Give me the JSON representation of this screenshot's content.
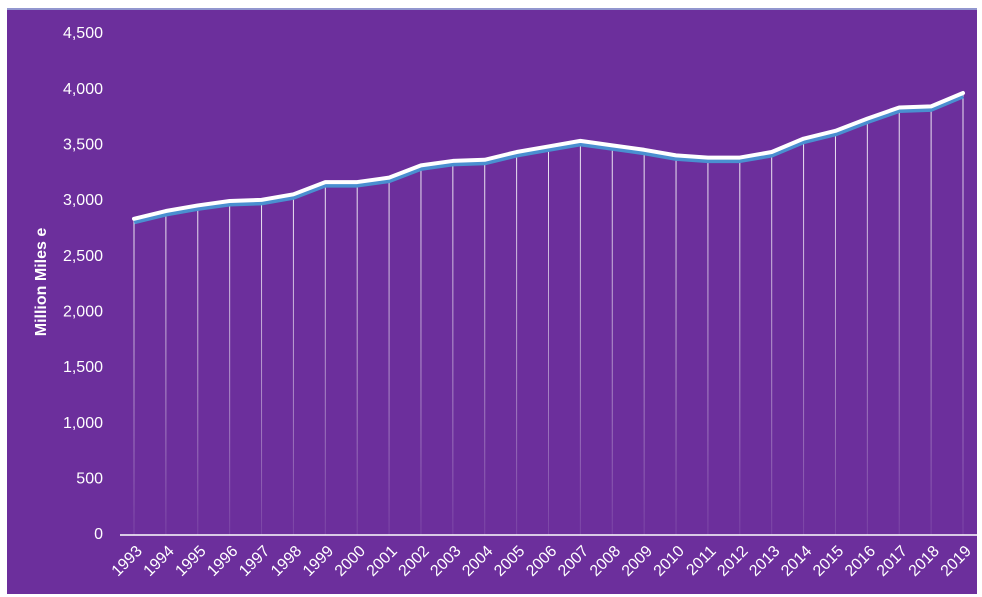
{
  "chart_data": {
    "type": "line",
    "y_label": "Million Miles e",
    "categories": [
      "1993",
      "1994",
      "1995",
      "1996",
      "1997",
      "1998",
      "1999",
      "2000",
      "2001",
      "2002",
      "2003",
      "2004",
      "2005",
      "2006",
      "2007",
      "2008",
      "2009",
      "2010",
      "2011",
      "2012",
      "2013",
      "2014",
      "2015",
      "2016",
      "2017",
      "2018",
      "2019"
    ],
    "values": [
      2840,
      2910,
      2960,
      3000,
      3010,
      3060,
      3170,
      3170,
      3210,
      3320,
      3360,
      3370,
      3440,
      3490,
      3540,
      3500,
      3460,
      3410,
      3390,
      3390,
      3440,
      3560,
      3630,
      3740,
      3840,
      3850,
      3970
    ],
    "color": "#ffffff",
    "ylim": [
      0,
      4500
    ],
    "yticks": [
      0,
      500,
      {
        "value": 1000,
        "label": "1,000"
      },
      {
        "value": 1500,
        "label": "1,500"
      },
      {
        "value": 2000,
        "label": "2,000"
      },
      {
        "value": 2500,
        "label": "2,500"
      },
      {
        "value": 3000,
        "label": "3,000"
      },
      {
        "value": 3500,
        "label": "3,500"
      },
      {
        "value": 4000,
        "label": "4,000"
      },
      {
        "value": 4500,
        "label": "4,500"
      }
    ],
    "drop_lines": true
  }
}
